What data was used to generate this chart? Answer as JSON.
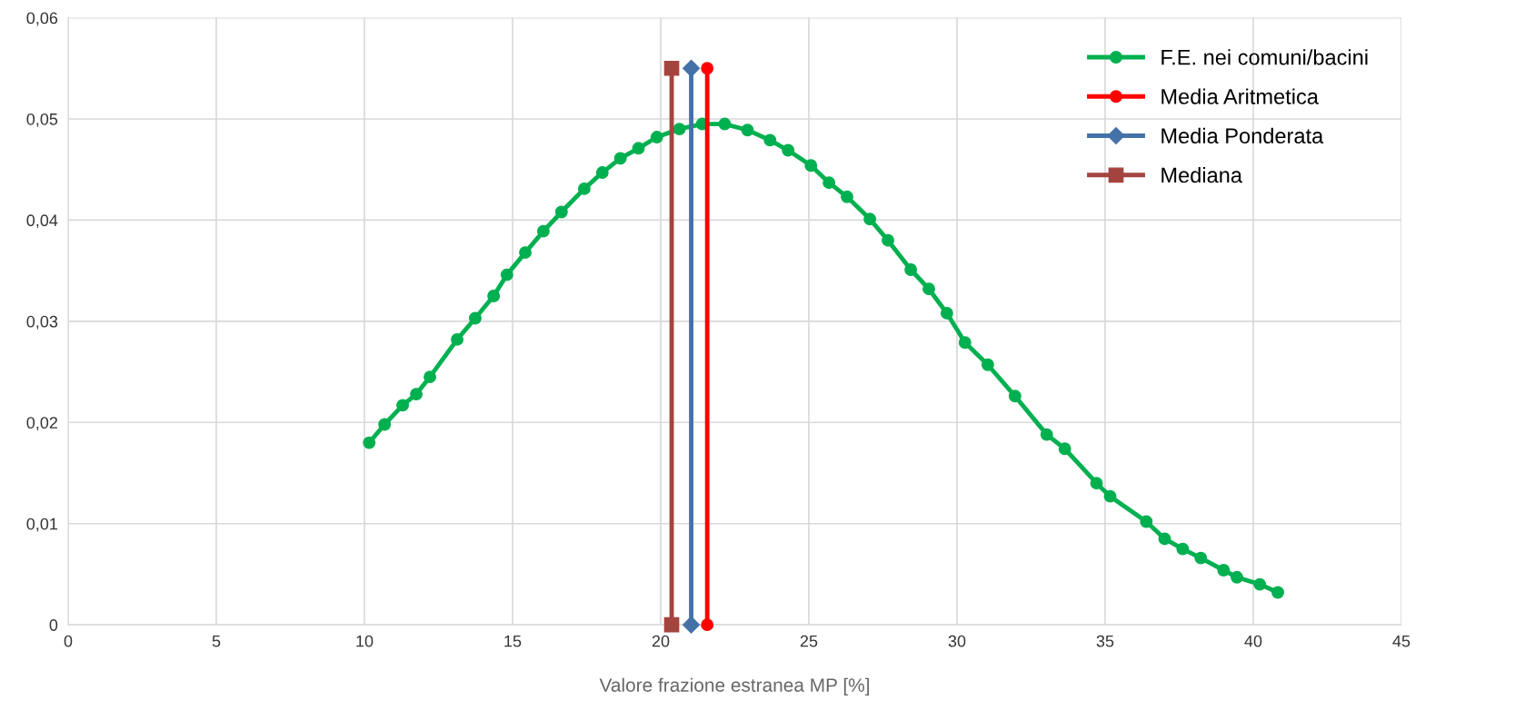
{
  "chart_data": {
    "type": "line",
    "xlabel": "Valore frazione estranea MP [%]",
    "xlim": [
      0,
      45
    ],
    "xticks": [
      0,
      5,
      10,
      15,
      20,
      25,
      30,
      35,
      40,
      45
    ],
    "ylim": [
      0,
      0.06
    ],
    "yticks": [
      0,
      {
        "value": 0.01,
        "label": "0,01"
      },
      {
        "value": 0.02,
        "label": "0,02"
      },
      {
        "value": 0.03,
        "label": "0,03"
      },
      {
        "value": 0.04,
        "label": "0,04"
      },
      {
        "value": 0.05,
        "label": "0,05"
      },
      {
        "value": 0.06,
        "label": "0,06"
      }
    ],
    "grid": true,
    "legend": "top right",
    "series": [
      {
        "name": "F.E. nei comuni/bacini",
        "color": "#00b050",
        "marker": "circle",
        "x": [
          10.16,
          10.68,
          11.29,
          11.75,
          12.21,
          13.13,
          13.74,
          14.36,
          14.81,
          15.43,
          16.04,
          16.65,
          17.42,
          18.03,
          18.64,
          19.25,
          19.87,
          20.63,
          21.4,
          22.16,
          22.93,
          23.69,
          24.3,
          25.07,
          25.68,
          26.29,
          27.06,
          27.67,
          28.44,
          29.05,
          29.66,
          30.27,
          31.04,
          31.96,
          33.03,
          33.64,
          34.71,
          35.17,
          36.39,
          37.01,
          37.62,
          38.23,
          39.0,
          39.45,
          40.22,
          40.83
        ],
        "values": [
          0.018,
          0.0198,
          0.0217,
          0.0228,
          0.0245,
          0.0282,
          0.0303,
          0.0325,
          0.0346,
          0.0368,
          0.0389,
          0.0408,
          0.0431,
          0.0447,
          0.0461,
          0.0471,
          0.0482,
          0.049,
          0.0495,
          0.0495,
          0.0489,
          0.0479,
          0.0469,
          0.0454,
          0.0437,
          0.0423,
          0.0401,
          0.038,
          0.0351,
          0.0332,
          0.0308,
          0.0279,
          0.0257,
          0.0226,
          0.0188,
          0.0174,
          0.014,
          0.0127,
          0.0102,
          0.0085,
          0.0075,
          0.0066,
          0.0054,
          0.0047,
          0.004,
          0.0032
        ]
      },
      {
        "name": "Media Aritmetica",
        "color": "#ff0000",
        "marker": "circle",
        "x": [
          21.57,
          21.57
        ],
        "values": [
          0,
          0.055
        ]
      },
      {
        "name": "Media Ponderata",
        "color": "#4472a8",
        "marker": "diamond",
        "x": [
          21.03,
          21.03
        ],
        "values": [
          0,
          0.055
        ]
      },
      {
        "name": "Mediana",
        "color": "#a5443f",
        "marker": "square",
        "x": [
          20.37,
          20.37
        ],
        "values": [
          0,
          0.055
        ]
      }
    ]
  }
}
